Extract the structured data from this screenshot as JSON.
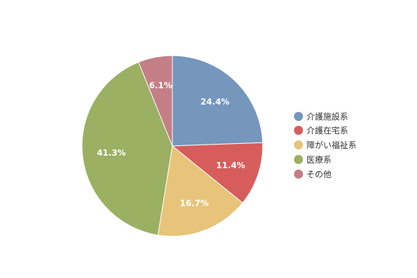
{
  "chart_data": {
    "type": "pie",
    "title": "",
    "start_angle_deg": 0,
    "direction": "clockwise",
    "legend_position": "right",
    "slices": [
      {
        "label": "介護施設系",
        "value": 24.4,
        "display": "24.4%",
        "color": "#7596bd"
      },
      {
        "label": "介護在宅系",
        "value": 11.4,
        "display": "11.4%",
        "color": "#d65d5b"
      },
      {
        "label": "障がい福祉系",
        "value": 16.7,
        "display": "16.7%",
        "color": "#e8c47a"
      },
      {
        "label": "医療系",
        "value": 41.3,
        "display": "41.3%",
        "color": "#9bb062"
      },
      {
        "label": "その他",
        "value": 6.1,
        "display": "6.1%",
        "color": "#c47f86"
      }
    ]
  }
}
